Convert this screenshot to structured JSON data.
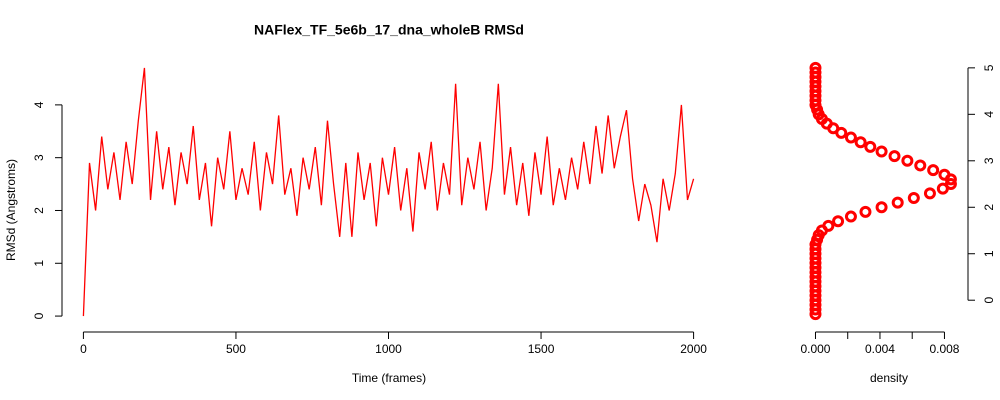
{
  "chart_data": [
    {
      "type": "line",
      "title": "NAFlex_TF_5e6b_17_dna_wholeB RMSd",
      "xlabel": "Time (frames)",
      "ylabel": "RMSd (Angstroms)",
      "color": "#ff0000",
      "xlim": [
        -80,
        2080
      ],
      "ylim": [
        -0.188,
        4.888
      ],
      "xticks": [
        0,
        500,
        1000,
        1500,
        2000
      ],
      "yticks": [
        0,
        1,
        2,
        3,
        4
      ],
      "x": [
        0,
        20,
        40,
        60,
        80,
        100,
        120,
        140,
        160,
        180,
        200,
        220,
        240,
        260,
        280,
        300,
        320,
        340,
        360,
        380,
        400,
        420,
        440,
        460,
        480,
        500,
        520,
        540,
        560,
        580,
        600,
        620,
        640,
        660,
        680,
        700,
        720,
        740,
        760,
        780,
        800,
        820,
        840,
        860,
        880,
        900,
        920,
        940,
        960,
        980,
        1000,
        1020,
        1040,
        1060,
        1080,
        1100,
        1120,
        1140,
        1160,
        1180,
        1200,
        1220,
        1240,
        1260,
        1280,
        1300,
        1320,
        1340,
        1360,
        1380,
        1400,
        1420,
        1440,
        1460,
        1480,
        1500,
        1520,
        1540,
        1560,
        1580,
        1600,
        1620,
        1640,
        1660,
        1680,
        1700,
        1720,
        1740,
        1760,
        1780,
        1800,
        1820,
        1840,
        1860,
        1880,
        1900,
        1920,
        1940,
        1960,
        1980,
        2000
      ],
      "values": [
        0,
        2.9,
        2.0,
        3.4,
        2.4,
        3.1,
        2.2,
        3.3,
        2.5,
        3.7,
        4.7,
        2.2,
        3.5,
        2.4,
        3.2,
        2.1,
        3.1,
        2.5,
        3.6,
        2.2,
        2.9,
        1.7,
        3.0,
        2.4,
        3.5,
        2.2,
        2.8,
        2.3,
        3.3,
        2.0,
        3.1,
        2.5,
        3.8,
        2.3,
        2.8,
        1.9,
        3.0,
        2.4,
        3.2,
        2.1,
        3.7,
        2.5,
        1.5,
        2.9,
        1.5,
        3.1,
        2.2,
        2.9,
        1.7,
        3.0,
        2.3,
        3.2,
        2.0,
        2.8,
        1.6,
        3.1,
        2.4,
        3.3,
        2.0,
        2.9,
        2.3,
        4.4,
        2.1,
        3.0,
        2.4,
        3.3,
        2.0,
        2.8,
        4.4,
        2.3,
        3.2,
        2.1,
        2.9,
        1.9,
        3.1,
        2.3,
        3.4,
        2.1,
        2.8,
        2.2,
        3.0,
        2.4,
        3.3,
        2.5,
        3.6,
        2.7,
        3.8,
        2.8,
        3.4,
        3.9,
        2.6,
        1.8,
        2.5,
        2.1,
        1.4,
        2.6,
        2.0,
        2.7,
        4.0,
        2.2,
        2.6
      ]
    },
    {
      "type": "density",
      "orientation": "horizontal",
      "xlabel": "density",
      "color": "#ff0000",
      "xlim": [
        -0.00034,
        0.00884
      ],
      "ylim": [
        -0.512,
        5.212
      ],
      "xticks": [
        {
          "value": 0,
          "label": "0.000"
        },
        {
          "value": 0.004,
          "label": "0.004"
        },
        {
          "value": 0.008,
          "label": "0.008"
        }
      ],
      "xminorticks": [
        0.002,
        0.006
      ],
      "yticks": [
        0,
        1,
        2,
        3,
        4,
        5
      ],
      "x": [
        -0.3,
        -0.2,
        -0.1,
        0,
        0.1,
        0.2,
        0.3,
        0.4,
        0.5,
        0.6,
        0.7,
        0.8,
        0.9,
        1.0,
        1.1,
        1.2,
        1.3,
        1.4,
        1.5,
        1.6,
        1.7,
        1.8,
        1.9,
        2.0,
        2.1,
        2.2,
        2.3,
        2.4,
        2.5,
        2.6,
        2.7,
        2.8,
        2.9,
        3.0,
        3.1,
        3.2,
        3.3,
        3.4,
        3.5,
        3.6,
        3.7,
        3.8,
        3.9,
        4.0,
        4.1,
        4.2,
        4.3,
        4.4,
        4.5,
        4.6,
        4.7,
        4.8,
        4.9,
        5.0
      ],
      "values": [
        0,
        0,
        0,
        0,
        0,
        0,
        0,
        0,
        0,
        0,
        0,
        0,
        0,
        0,
        0,
        0,
        0.0001,
        0.0002,
        0.0004,
        0.0008,
        0.0014,
        0.0022,
        0.0031,
        0.0041,
        0.0051,
        0.0061,
        0.0071,
        0.0079,
        0.0084,
        0.0084,
        0.008,
        0.0073,
        0.0065,
        0.0057,
        0.0049,
        0.0041,
        0.0034,
        0.0028,
        0.0022,
        0.0016,
        0.0011,
        0.0007,
        0.0004,
        0.0002,
        0.0001,
        0,
        0,
        0,
        0,
        0,
        0,
        0,
        0,
        0
      ]
    }
  ]
}
